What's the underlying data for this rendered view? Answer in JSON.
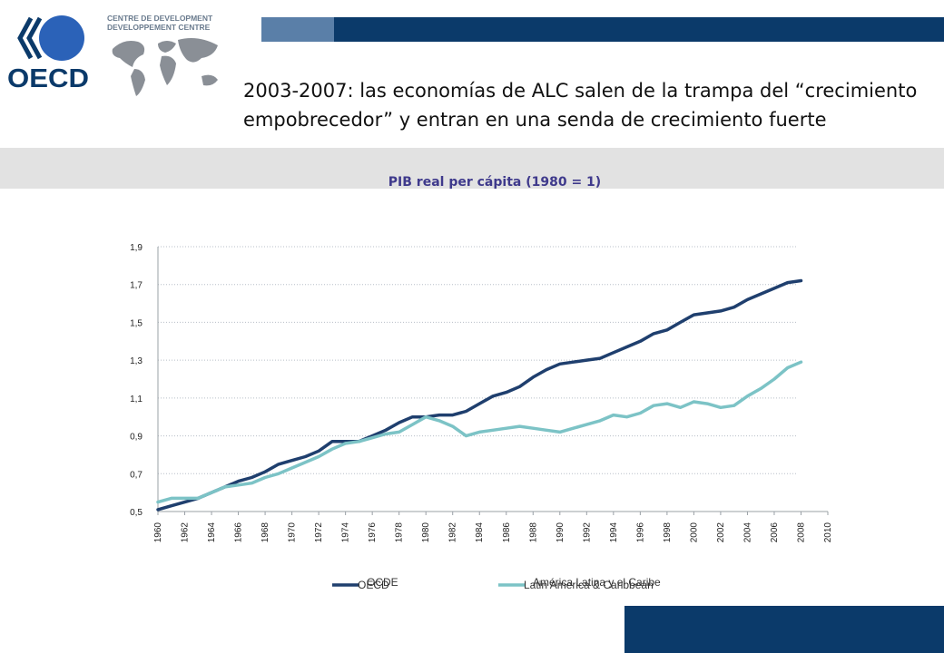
{
  "header": {
    "logo_text": "OECD",
    "centre_line1": "CENTRE DE DEVELOPMENT",
    "centre_line2": "DEVELOPPEMENT CENTRE",
    "headline_line1": "2003-2007: las economías de ALC salen de la trampa del “crecimiento",
    "headline_line2": "empobrecedor” y entran en una senda de crecimiento fuerte"
  },
  "colors": {
    "navy": "#0b3a6a",
    "mid_blue": "#5a7fa8",
    "band_gray": "#e2e2e2",
    "series_oecd": "#1f3f6e",
    "series_lac": "#7cc3c6",
    "title_color": "#3f3a8c"
  },
  "chart_data": {
    "type": "line",
    "title": "PIB real per cápita (1980 = 1)",
    "xlabel": "",
    "ylabel": "",
    "xlim": [
      1960,
      2010
    ],
    "ylim": [
      0.5,
      1.9
    ],
    "y_ticks": [
      "1,9",
      "1,7",
      "1,5",
      "1,3",
      "1,1",
      "0,9",
      "0,7",
      "0,5"
    ],
    "x_ticks": [
      "1960",
      "1962",
      "1964",
      "1966",
      "1968",
      "1970",
      "1972",
      "1974",
      "1976",
      "1978",
      "1980",
      "1982",
      "1984",
      "1986",
      "1988",
      "1990",
      "1992",
      "1994",
      "1996",
      "1998",
      "2000",
      "2002",
      "2004",
      "2006",
      "2008",
      "2010"
    ],
    "grid": "horizontal dotted",
    "legend_position": "bottom",
    "x": [
      1960,
      1961,
      1962,
      1963,
      1964,
      1965,
      1966,
      1967,
      1968,
      1969,
      1970,
      1971,
      1972,
      1973,
      1974,
      1975,
      1976,
      1977,
      1978,
      1979,
      1980,
      1981,
      1982,
      1983,
      1984,
      1985,
      1986,
      1987,
      1988,
      1989,
      1990,
      1991,
      1992,
      1993,
      1994,
      1995,
      1996,
      1997,
      1998,
      1999,
      2000,
      2001,
      2002,
      2003,
      2004,
      2005,
      2006,
      2007,
      2008
    ],
    "series": [
      {
        "name": "OCDE",
        "overlay_name": "OECD",
        "color": "#1f3f6e",
        "values": [
          0.51,
          0.53,
          0.55,
          0.57,
          0.6,
          0.63,
          0.66,
          0.68,
          0.71,
          0.75,
          0.77,
          0.79,
          0.82,
          0.87,
          0.87,
          0.87,
          0.9,
          0.93,
          0.97,
          1.0,
          1.0,
          1.01,
          1.01,
          1.03,
          1.07,
          1.11,
          1.13,
          1.16,
          1.21,
          1.25,
          1.28,
          1.29,
          1.3,
          1.31,
          1.34,
          1.37,
          1.4,
          1.44,
          1.46,
          1.5,
          1.54,
          1.55,
          1.56,
          1.58,
          1.62,
          1.65,
          1.68,
          1.71,
          1.72
        ]
      },
      {
        "name": "América Latina y el Caribe",
        "overlay_name": "Latin America & Caribbean",
        "color": "#7cc3c6",
        "values": [
          0.55,
          0.57,
          0.57,
          0.57,
          0.6,
          0.63,
          0.64,
          0.65,
          0.68,
          0.7,
          0.73,
          0.76,
          0.79,
          0.83,
          0.86,
          0.87,
          0.89,
          0.91,
          0.92,
          0.96,
          1.0,
          0.98,
          0.95,
          0.9,
          0.92,
          0.93,
          0.94,
          0.95,
          0.94,
          0.93,
          0.92,
          0.94,
          0.96,
          0.98,
          1.01,
          1.0,
          1.02,
          1.06,
          1.07,
          1.05,
          1.08,
          1.07,
          1.05,
          1.06,
          1.11,
          1.15,
          1.2,
          1.26,
          1.29
        ]
      }
    ]
  }
}
